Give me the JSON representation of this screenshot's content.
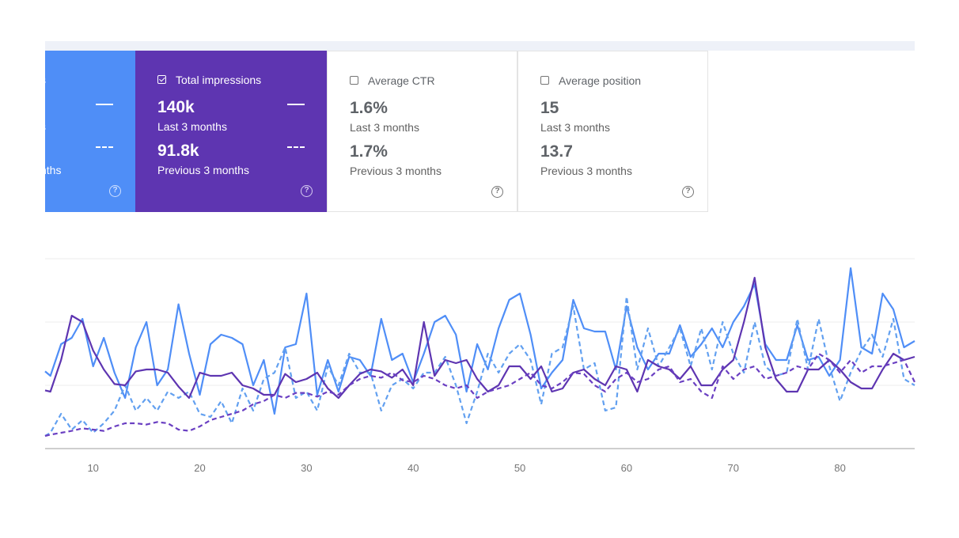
{
  "cards": {
    "clicks": {
      "label_fragment": "s",
      "value1_fragment": "s",
      "period2_fragment": "nths"
    },
    "impressions": {
      "label": "Total impressions",
      "checked": true,
      "value1": "140k",
      "period1": "Last 3 months",
      "value2": "91.8k",
      "period2": "Previous 3 months",
      "help": "?"
    },
    "ctr": {
      "label": "Average CTR",
      "checked": false,
      "value1": "1.6%",
      "period1": "Last 3 months",
      "value2": "1.7%",
      "period2": "Previous 3 months",
      "help": "?"
    },
    "position": {
      "label": "Average position",
      "checked": false,
      "value1": "15",
      "period1": "Last 3 months",
      "value2": "13.7",
      "period2": "Previous 3 months",
      "help": "?"
    },
    "clicks_help": "?"
  },
  "colors": {
    "clicks": "#4f8ef7",
    "impressions": "#5e35b1",
    "clicks_light": "#62a0f0",
    "impressions_dashed": "#6a3fc2"
  },
  "chart_data": {
    "type": "line",
    "xlim": [
      5.5,
      87
    ],
    "ylim": [
      0,
      300
    ],
    "x_ticks": [
      10,
      20,
      30,
      40,
      50,
      60,
      70,
      80
    ],
    "grid": true,
    "series": [
      {
        "key": "clicks_last",
        "style": "solid",
        "color": "#4f8ef7",
        "x": [
          5.5,
          6,
          7,
          8,
          9,
          10,
          11,
          12,
          13,
          14,
          15,
          16,
          17,
          18,
          19,
          20,
          21,
          22,
          23,
          24,
          25,
          26,
          27,
          28,
          29,
          30,
          31,
          32,
          33,
          34,
          35,
          36,
          37,
          38,
          39,
          40,
          41,
          42,
          43,
          44,
          45,
          46,
          47,
          48,
          49,
          50,
          51,
          52,
          53,
          54,
          55,
          56,
          57,
          58,
          59,
          60,
          61,
          62,
          63,
          64,
          65,
          66,
          67,
          68,
          69,
          70,
          71,
          72,
          73,
          74,
          75,
          76,
          77,
          78,
          79,
          80,
          81,
          82,
          83,
          84,
          85,
          86,
          87
        ],
        "y": [
          122,
          115,
          165,
          175,
          205,
          130,
          175,
          120,
          80,
          160,
          200,
          100,
          125,
          228,
          150,
          85,
          165,
          180,
          175,
          165,
          100,
          140,
          55,
          160,
          165,
          245,
          85,
          140,
          90,
          145,
          140,
          115,
          205,
          140,
          150,
          105,
          150,
          200,
          210,
          180,
          90,
          165,
          125,
          190,
          235,
          245,
          180,
          95,
          120,
          140,
          235,
          190,
          185,
          185,
          125,
          225,
          160,
          125,
          150,
          150,
          195,
          145,
          165,
          190,
          160,
          200,
          225,
          260,
          165,
          140,
          140,
          195,
          140,
          145,
          115,
          140,
          285,
          160,
          150,
          245,
          220,
          160,
          170
        ]
      },
      {
        "key": "clicks_prev",
        "style": "dashed",
        "color": "#62a0f0",
        "x": [
          5.5,
          6,
          7,
          8,
          9,
          10,
          11,
          12,
          13,
          14,
          15,
          16,
          17,
          18,
          19,
          20,
          21,
          22,
          23,
          24,
          25,
          26,
          27,
          28,
          29,
          30,
          31,
          32,
          33,
          34,
          35,
          36,
          37,
          38,
          39,
          40,
          41,
          42,
          43,
          44,
          45,
          46,
          47,
          48,
          49,
          50,
          51,
          52,
          53,
          54,
          55,
          56,
          57,
          58,
          59,
          60,
          61,
          62,
          63,
          64,
          65,
          66,
          67,
          68,
          69,
          70,
          71,
          72,
          73,
          74,
          75,
          76,
          77,
          78,
          79,
          80,
          81,
          82,
          83,
          84,
          85,
          86,
          87
        ],
        "y": [
          20,
          25,
          55,
          30,
          45,
          25,
          40,
          60,
          100,
          60,
          80,
          60,
          90,
          80,
          90,
          55,
          50,
          75,
          40,
          95,
          60,
          110,
          120,
          160,
          80,
          90,
          60,
          130,
          100,
          150,
          120,
          120,
          60,
          100,
          110,
          95,
          120,
          120,
          145,
          100,
          40,
          90,
          150,
          120,
          150,
          165,
          140,
          70,
          150,
          160,
          225,
          125,
          135,
          60,
          65,
          240,
          125,
          190,
          130,
          160,
          190,
          130,
          190,
          125,
          200,
          150,
          120,
          200,
          130,
          115,
          120,
          205,
          125,
          205,
          130,
          75,
          120,
          155,
          180,
          145,
          205,
          110,
          100
        ]
      },
      {
        "key": "impressions_last",
        "style": "solid",
        "color": "#5e35b1",
        "x": [
          5.5,
          6,
          7,
          8,
          9,
          10,
          11,
          12,
          13,
          14,
          15,
          16,
          17,
          18,
          19,
          20,
          21,
          22,
          23,
          24,
          25,
          26,
          27,
          28,
          29,
          30,
          31,
          32,
          33,
          34,
          35,
          36,
          37,
          38,
          39,
          40,
          41,
          42,
          43,
          44,
          45,
          46,
          47,
          48,
          49,
          50,
          51,
          52,
          53,
          54,
          55,
          56,
          57,
          58,
          59,
          60,
          61,
          62,
          63,
          64,
          65,
          66,
          67,
          68,
          69,
          70,
          71,
          72,
          73,
          74,
          75,
          76,
          77,
          78,
          79,
          80,
          81,
          82,
          83,
          84,
          85,
          86,
          87
        ],
        "y": [
          92,
          90,
          140,
          210,
          200,
          155,
          125,
          102,
          100,
          122,
          125,
          125,
          120,
          98,
          80,
          120,
          115,
          115,
          120,
          100,
          95,
          85,
          85,
          118,
          105,
          110,
          120,
          95,
          80,
          100,
          118,
          125,
          122,
          112,
          125,
          100,
          200,
          115,
          140,
          135,
          140,
          110,
          90,
          100,
          130,
          130,
          110,
          130,
          90,
          95,
          120,
          125,
          110,
          100,
          130,
          125,
          90,
          140,
          130,
          125,
          110,
          130,
          100,
          100,
          125,
          140,
          200,
          270,
          160,
          110,
          90,
          90,
          125,
          125,
          140,
          125,
          105,
          95,
          95,
          125,
          150,
          140,
          145
        ]
      },
      {
        "key": "impressions_prev",
        "style": "dashed",
        "color": "#6a3fc2",
        "x": [
          5.5,
          6,
          7,
          8,
          9,
          10,
          11,
          12,
          13,
          14,
          15,
          16,
          17,
          18,
          19,
          20,
          21,
          22,
          23,
          24,
          25,
          26,
          27,
          28,
          29,
          30,
          31,
          32,
          33,
          34,
          35,
          36,
          37,
          38,
          39,
          40,
          41,
          42,
          43,
          44,
          45,
          46,
          47,
          48,
          49,
          50,
          51,
          52,
          53,
          54,
          55,
          56,
          57,
          58,
          59,
          60,
          61,
          62,
          63,
          64,
          65,
          66,
          67,
          68,
          69,
          70,
          71,
          72,
          73,
          74,
          75,
          76,
          77,
          78,
          79,
          80,
          81,
          82,
          83,
          84,
          85,
          86,
          87
        ],
        "y": [
          20,
          22,
          25,
          28,
          32,
          30,
          28,
          35,
          40,
          40,
          38,
          42,
          40,
          30,
          28,
          35,
          45,
          50,
          55,
          60,
          70,
          75,
          85,
          80,
          88,
          88,
          82,
          90,
          85,
          100,
          110,
          115,
          112,
          120,
          108,
          105,
          115,
          110,
          100,
          95,
          100,
          80,
          90,
          95,
          100,
          110,
          120,
          100,
          95,
          105,
          120,
          118,
          100,
          90,
          110,
          120,
          105,
          110,
          125,
          130,
          105,
          110,
          90,
          80,
          130,
          110,
          125,
          130,
          110,
          115,
          120,
          130,
          125,
          150,
          140,
          120,
          140,
          120,
          130,
          130,
          135,
          140,
          105
        ]
      }
    ]
  }
}
